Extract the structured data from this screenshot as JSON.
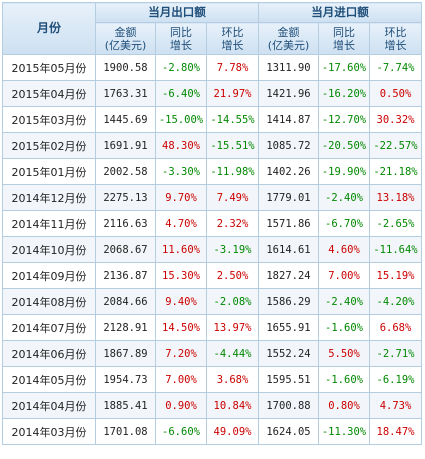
{
  "header": {
    "month_label": "月份",
    "export_group": "当月出口额",
    "import_group": "当月进口额",
    "amount_line1": "金额",
    "amount_line2": "(亿美元)",
    "yoy_line1": "同比",
    "yoy_line2": "增长",
    "mom_line1": "环比",
    "mom_line2": "增长"
  },
  "colors": {
    "positive": "#cc0000",
    "negative": "#008800",
    "header_text": "#1f4e79"
  },
  "rows": [
    {
      "month": "2015年05月份",
      "exp_amt": "1900.58",
      "exp_yoy": "-2.80%",
      "exp_mom": "7.78%",
      "imp_amt": "1311.90",
      "imp_yoy": "-17.60%",
      "imp_mom": "-7.74%"
    },
    {
      "month": "2015年04月份",
      "exp_amt": "1763.31",
      "exp_yoy": "-6.40%",
      "exp_mom": "21.97%",
      "imp_amt": "1421.96",
      "imp_yoy": "-16.20%",
      "imp_mom": "0.50%"
    },
    {
      "month": "2015年03月份",
      "exp_amt": "1445.69",
      "exp_yoy": "-15.00%",
      "exp_mom": "-14.55%",
      "imp_amt": "1414.87",
      "imp_yoy": "-12.70%",
      "imp_mom": "30.32%"
    },
    {
      "month": "2015年02月份",
      "exp_amt": "1691.91",
      "exp_yoy": "48.30%",
      "exp_mom": "-15.51%",
      "imp_amt": "1085.72",
      "imp_yoy": "-20.50%",
      "imp_mom": "-22.57%"
    },
    {
      "month": "2015年01月份",
      "exp_amt": "2002.58",
      "exp_yoy": "-3.30%",
      "exp_mom": "-11.98%",
      "imp_amt": "1402.26",
      "imp_yoy": "-19.90%",
      "imp_mom": "-21.18%"
    },
    {
      "month": "2014年12月份",
      "exp_amt": "2275.13",
      "exp_yoy": "9.70%",
      "exp_mom": "7.49%",
      "imp_amt": "1779.01",
      "imp_yoy": "-2.40%",
      "imp_mom": "13.18%"
    },
    {
      "month": "2014年11月份",
      "exp_amt": "2116.63",
      "exp_yoy": "4.70%",
      "exp_mom": "2.32%",
      "imp_amt": "1571.86",
      "imp_yoy": "-6.70%",
      "imp_mom": "-2.65%"
    },
    {
      "month": "2014年10月份",
      "exp_amt": "2068.67",
      "exp_yoy": "11.60%",
      "exp_mom": "-3.19%",
      "imp_amt": "1614.61",
      "imp_yoy": "4.60%",
      "imp_mom": "-11.64%"
    },
    {
      "month": "2014年09月份",
      "exp_amt": "2136.87",
      "exp_yoy": "15.30%",
      "exp_mom": "2.50%",
      "imp_amt": "1827.24",
      "imp_yoy": "7.00%",
      "imp_mom": "15.19%"
    },
    {
      "month": "2014年08月份",
      "exp_amt": "2084.66",
      "exp_yoy": "9.40%",
      "exp_mom": "-2.08%",
      "imp_amt": "1586.29",
      "imp_yoy": "-2.40%",
      "imp_mom": "-4.20%"
    },
    {
      "month": "2014年07月份",
      "exp_amt": "2128.91",
      "exp_yoy": "14.50%",
      "exp_mom": "13.97%",
      "imp_amt": "1655.91",
      "imp_yoy": "-1.60%",
      "imp_mom": "6.68%"
    },
    {
      "month": "2014年06月份",
      "exp_amt": "1867.89",
      "exp_yoy": "7.20%",
      "exp_mom": "-4.44%",
      "imp_amt": "1552.24",
      "imp_yoy": "5.50%",
      "imp_mom": "-2.71%"
    },
    {
      "month": "2014年05月份",
      "exp_amt": "1954.73",
      "exp_yoy": "7.00%",
      "exp_mom": "3.68%",
      "imp_amt": "1595.51",
      "imp_yoy": "-1.60%",
      "imp_mom": "-6.19%"
    },
    {
      "month": "2014年04月份",
      "exp_amt": "1885.41",
      "exp_yoy": "0.90%",
      "exp_mom": "10.84%",
      "imp_amt": "1700.88",
      "imp_yoy": "0.80%",
      "imp_mom": "4.73%"
    },
    {
      "month": "2014年03月份",
      "exp_amt": "1701.08",
      "exp_yoy": "-6.60%",
      "exp_mom": "49.09%",
      "imp_amt": "1624.05",
      "imp_yoy": "-11.30%",
      "imp_mom": "18.47%"
    }
  ]
}
